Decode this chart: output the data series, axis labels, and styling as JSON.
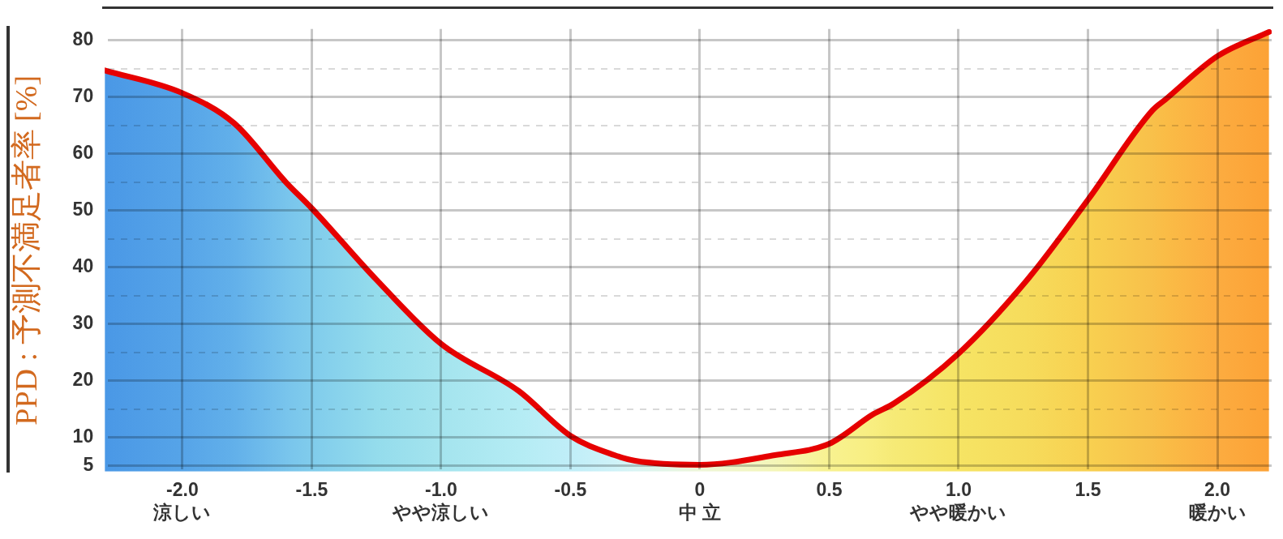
{
  "chart_data": {
    "type": "area",
    "ylabel": "PPD : 予測不満足者率 [%]",
    "x": [
      -2.3,
      -2.0,
      -1.8,
      -1.6,
      -1.5,
      -1.25,
      -1.0,
      -0.7,
      -0.5,
      -0.33,
      -0.25,
      0,
      0.29,
      0.5,
      0.67,
      0.75,
      1.0,
      1.26,
      1.5,
      1.75,
      1.8,
      2.0,
      2.2
    ],
    "series": [
      {
        "color": "#e60000",
        "values": [
          74.7,
          70.7,
          65.4,
          55,
          50.4,
          37.8,
          26.5,
          18.2,
          10.3,
          6.9,
          5.9,
          5.2,
          6.9,
          8.9,
          14.1,
          16,
          24.8,
          37.5,
          51.9,
          67.7,
          69.6,
          77.2,
          81.5
        ],
        "colors": [
          "#4a98e6",
          "#56a4e8",
          "#62b0ea",
          "#78c4ec",
          "#80ccec",
          "#94dcec",
          "#a4e4ee",
          "#b4ecf4",
          "#c0eef8",
          "#cef2f8",
          "#d8f4f4",
          "#eef6d8",
          "#f4f6b8",
          "#f8f290",
          "#f8ee80",
          "#f6ea76",
          "#f6e464",
          "#f6dc5c",
          "#f8d050",
          "#f8c04a",
          "#fabc46",
          "#fcac40",
          "#fca236"
        ]
      }
    ],
    "xlim": [
      -2.3,
      2.21
    ],
    "ylim": [
      4,
      82
    ],
    "xticks": [
      {
        "value": -2,
        "label": "-2.0\n涼しい"
      },
      {
        "value": -1.5,
        "label": "-1.5"
      },
      {
        "value": -1,
        "label": "-1.0\nやや涼しい"
      },
      {
        "value": -0.5,
        "label": "-0.5"
      },
      {
        "value": 0,
        "label": "0\n中 立"
      },
      {
        "value": 0.5,
        "label": "0.5"
      },
      {
        "value": 1,
        "label": "1.0\nやや暖かい"
      },
      {
        "value": 1.5,
        "label": "1.5"
      },
      {
        "value": 2,
        "label": "2.0\n暖かい"
      }
    ],
    "yticks": [
      5,
      10,
      {
        "value": 15,
        "label": null
      },
      20,
      {
        "value": 25,
        "label": null
      },
      30,
      {
        "value": 35,
        "label": null
      },
      40,
      {
        "value": 45,
        "label": null
      },
      50,
      {
        "value": 55,
        "label": null
      },
      60,
      {
        "value": 65,
        "label": null
      },
      70,
      {
        "value": 75,
        "label": null
      },
      80
    ],
    "grid": true,
    "legend": false,
    "marker": "none",
    "line_style": "solid"
  }
}
